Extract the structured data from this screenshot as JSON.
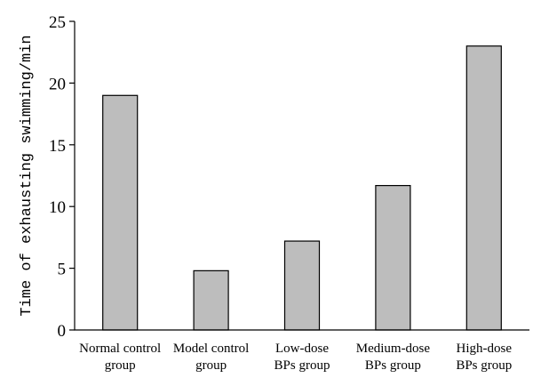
{
  "chart_data": {
    "type": "bar",
    "title": "",
    "xlabel": "",
    "ylabel": "Time of exhausting swimming/min",
    "ylim": [
      0,
      25
    ],
    "yticks": [
      0,
      5,
      10,
      15,
      20,
      25
    ],
    "categories": [
      [
        "Normal control",
        "group"
      ],
      [
        "Model control",
        "group"
      ],
      [
        "Low-dose",
        "BPs group"
      ],
      [
        "Medium-dose",
        "BPs group"
      ],
      [
        "High-dose",
        "BPs group"
      ]
    ],
    "values": [
      19.0,
      4.8,
      7.2,
      11.7,
      23.0
    ],
    "bar_color": "#bdbdbd",
    "grid": false,
    "legend": "none"
  }
}
